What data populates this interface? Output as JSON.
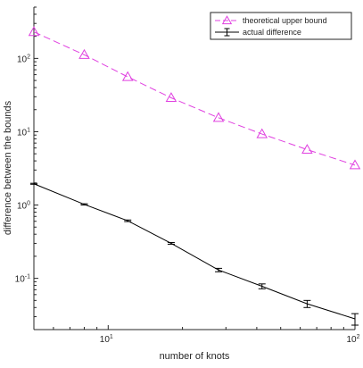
{
  "chart_data": {
    "type": "line",
    "xlabel": "number of knots",
    "ylabel": "difference between the bounds",
    "xscale": "log",
    "yscale": "log",
    "xlim": [
      5,
      100
    ],
    "ylim": [
      0.02,
      500
    ],
    "grid": false,
    "legend_position": "top-right",
    "x_ticks": [
      {
        "value": 10,
        "base": "10",
        "exp": "1"
      },
      {
        "value": 100,
        "base": "10",
        "exp": "2"
      }
    ],
    "y_ticks": [
      {
        "value": 0.1,
        "base": "10",
        "exp": "-1"
      },
      {
        "value": 1,
        "base": "10",
        "exp": "0"
      },
      {
        "value": 10,
        "base": "10",
        "exp": "1"
      },
      {
        "value": 100,
        "base": "10",
        "exp": "2"
      }
    ],
    "series": [
      {
        "name": "theoretical upper bound",
        "color": "#e040e0",
        "style": "dashed",
        "marker": "triangle",
        "x": [
          5,
          8,
          12,
          18,
          28,
          42,
          64,
          100
        ],
        "y": [
          230,
          112,
          56,
          29,
          15.5,
          9.3,
          5.7,
          3.5
        ]
      },
      {
        "name": "actual difference",
        "color": "#000000",
        "style": "solid",
        "marker": "errorbar",
        "x": [
          5,
          8,
          12,
          18,
          28,
          42,
          64,
          100
        ],
        "y": [
          1.95,
          1.02,
          0.61,
          0.3,
          0.13,
          0.078,
          0.045,
          0.028
        ],
        "err": [
          0.03,
          0.02,
          0.015,
          0.008,
          0.007,
          0.006,
          0.005,
          0.005
        ]
      }
    ]
  }
}
